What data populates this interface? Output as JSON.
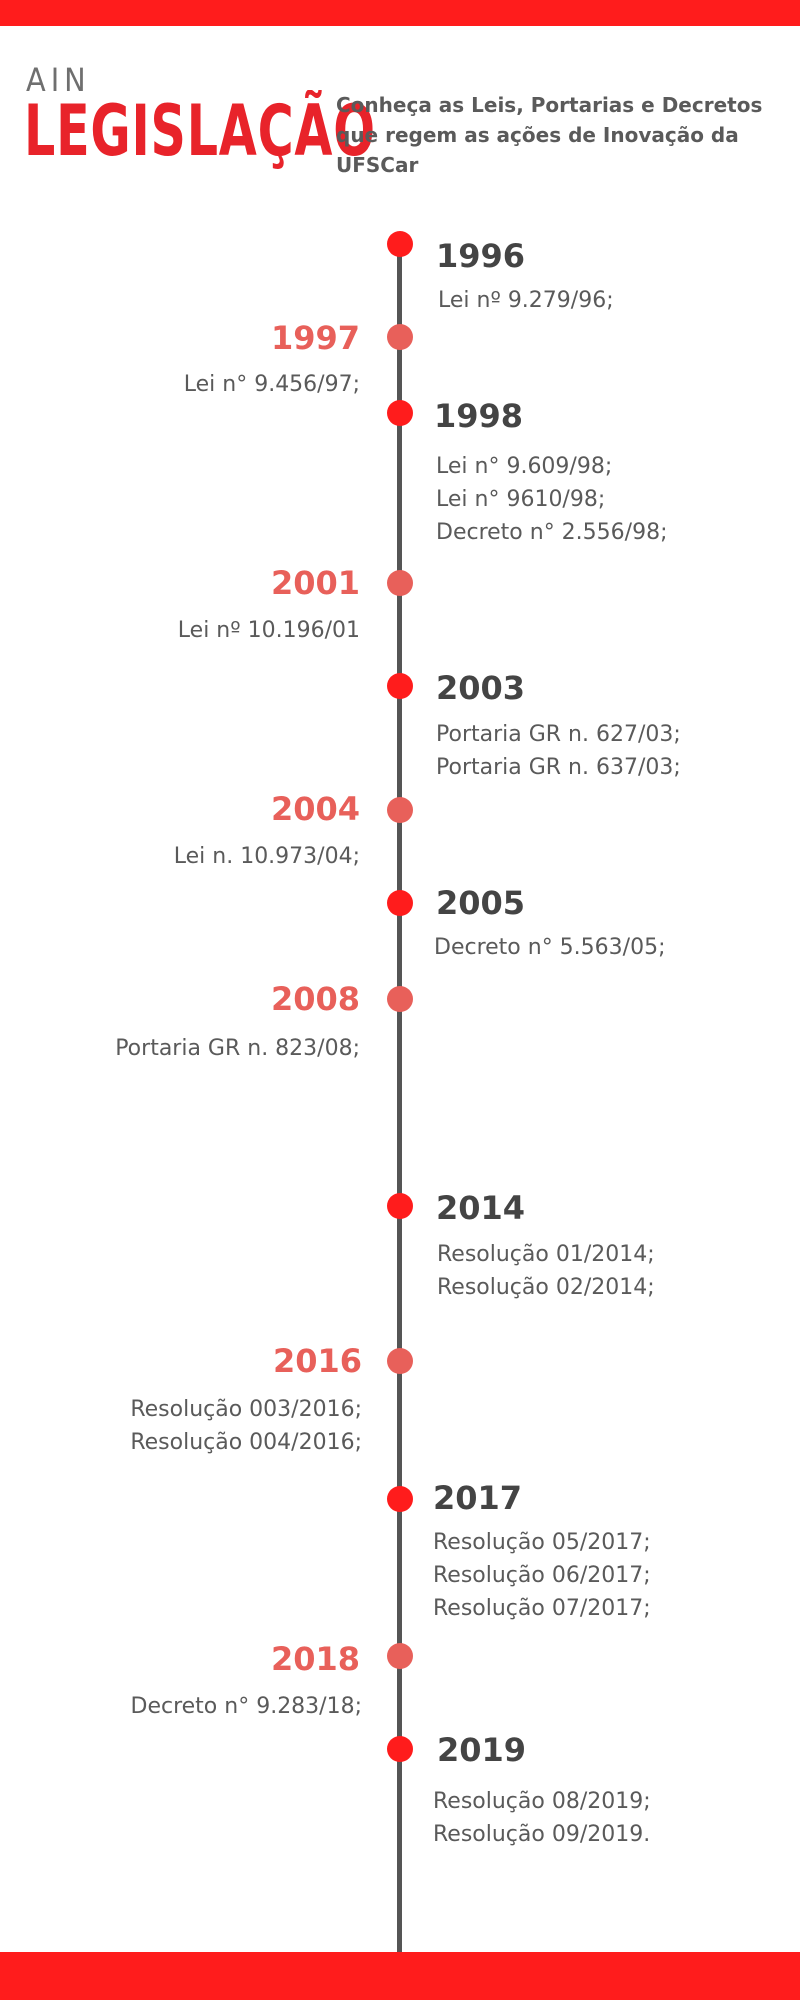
{
  "header": {
    "kicker": "AIN",
    "title": "LEGISLAÇÃO",
    "intro": "Conheça as Leis, Portarias e Decretos que regem as ações de Inovação da UFSCar"
  },
  "colors": {
    "accent": "#ff1c1c",
    "left_year": "#e8605a",
    "text": "#5a5a5a",
    "line": "#555555"
  },
  "timeline": [
    {
      "year": "1996",
      "side": "right",
      "items": [
        "Lei nº 9.279/96;"
      ]
    },
    {
      "year": "1997",
      "side": "left",
      "items": [
        "Lei n° 9.456/97;"
      ]
    },
    {
      "year": "1998",
      "side": "right",
      "items": [
        "Lei n° 9.609/98;",
        "Lei n° 9610/98;",
        "Decreto n° 2.556/98;"
      ]
    },
    {
      "year": "2001",
      "side": "left",
      "items": [
        "Lei nº 10.196/01"
      ]
    },
    {
      "year": "2003",
      "side": "right",
      "items": [
        "Portaria GR n. 627/03;",
        "Portaria GR n. 637/03;"
      ]
    },
    {
      "year": "2004",
      "side": "left",
      "items": [
        "Lei n. 10.973/04;"
      ]
    },
    {
      "year": "2005",
      "side": "right",
      "items": [
        "Decreto n° 5.563/05;"
      ]
    },
    {
      "year": "2008",
      "side": "left",
      "items": [
        "Portaria GR n. 823/08;"
      ]
    },
    {
      "year": "2014",
      "side": "right",
      "items": [
        "Resolução 01/2014;",
        "Resolução 02/2014;"
      ]
    },
    {
      "year": "2016",
      "side": "left",
      "items": [
        "Resolução 003/2016;",
        "Resolução 004/2016;"
      ]
    },
    {
      "year": "2017",
      "side": "right",
      "items": [
        "Resolução 05/2017;",
        "Resolução 06/2017;",
        "Resolução 07/2017;"
      ]
    },
    {
      "year": "2018",
      "side": "left",
      "items": [
        "Decreto n° 9.283/18;"
      ]
    },
    {
      "year": "2019",
      "side": "right",
      "items": [
        "Resolução 08/2019;",
        "Resolução 09/2019."
      ]
    }
  ]
}
